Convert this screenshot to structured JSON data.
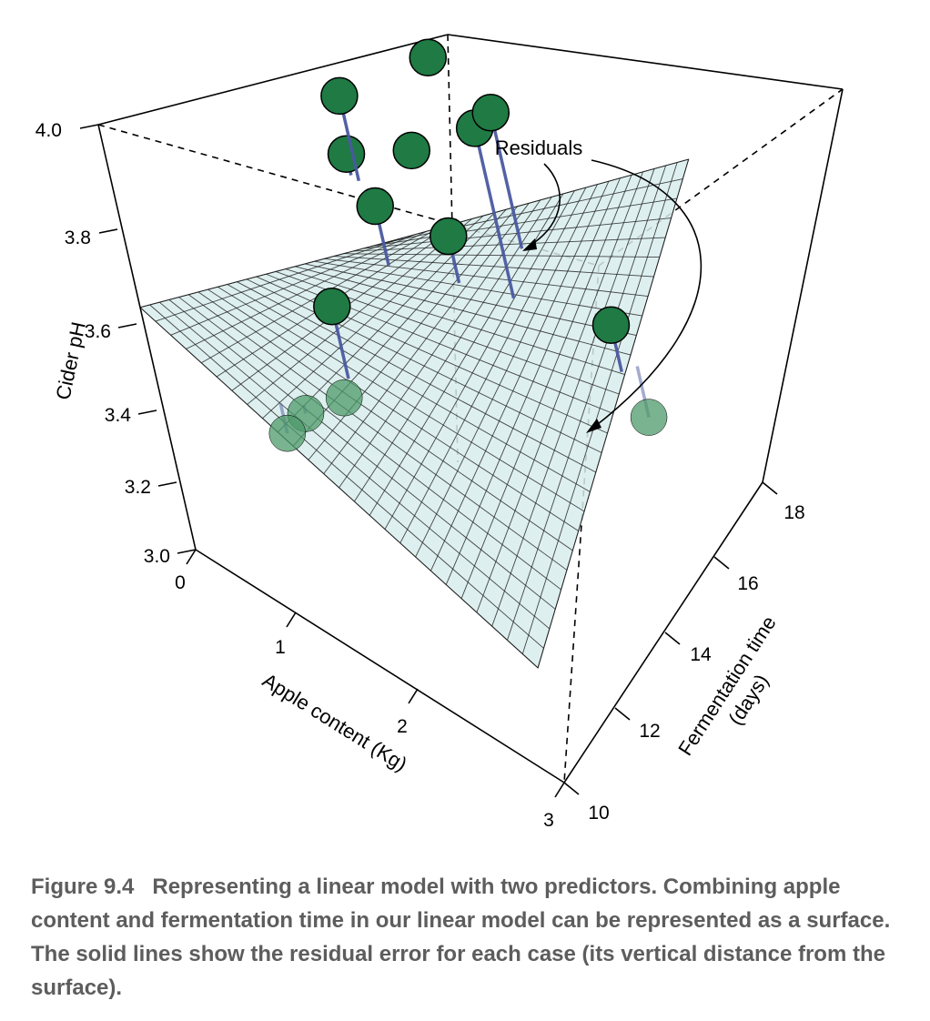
{
  "chart_data": {
    "type": "scatter",
    "subtype": "3d-regression-surface",
    "zlabel": "Cider pH",
    "xlabel": "Apple content (Kg)",
    "ylabel_line1": "Fermentation time",
    "ylabel_line2": "(days)",
    "annotation": "Residuals",
    "x_ticks": [
      "0",
      "1",
      "2",
      "3"
    ],
    "y_ticks": [
      "10",
      "12",
      "14",
      "16",
      "18"
    ],
    "z_ticks": [
      "3.0",
      "3.2",
      "3.4",
      "3.6",
      "3.8",
      "4.0"
    ],
    "xlim": [
      0,
      3
    ],
    "ylim": [
      10,
      18
    ],
    "zlim": [
      3.0,
      4.0
    ],
    "surface": {
      "z_at_x0_y18": 3.02,
      "z_at_x3_y18": 3.76,
      "z_at_x0_y10": 3.57,
      "z_at_x3_y10": 3.27
    },
    "points": [
      {
        "apple": 0.55,
        "time": 12.5,
        "ph": 3.2,
        "fit": 3.22,
        "above": false
      },
      {
        "apple": 0.62,
        "time": 13.8,
        "ph": 3.35,
        "fit": 3.18,
        "above": true
      },
      {
        "apple": 0.9,
        "time": 14.9,
        "ph": 3.54,
        "fit": 3.4,
        "above": true
      },
      {
        "apple": 0.95,
        "time": 12.5,
        "ph": 3.31,
        "fit": 3.31,
        "above": false
      },
      {
        "apple": 0.65,
        "time": 11.5,
        "ph": 3.26,
        "fit": 3.33,
        "above": false
      },
      {
        "apple": 1.35,
        "time": 17.0,
        "ph": 3.62,
        "fit": 3.22,
        "above": true
      },
      {
        "apple": 1.05,
        "time": 15.9,
        "ph": 3.61,
        "fit": 3.58,
        "above": true
      },
      {
        "apple": 1.5,
        "time": 15.0,
        "ph": 3.57,
        "fit": 3.46,
        "above": true
      },
      {
        "apple": 0.58,
        "time": 15.4,
        "ph": 3.56,
        "fit": 3.51,
        "above": true
      },
      {
        "apple": 0.45,
        "time": 16.0,
        "ph": 3.62,
        "fit": 3.42,
        "above": true
      },
      {
        "apple": 0.9,
        "time": 17.5,
        "ph": 3.66,
        "fit": 3.63,
        "above": true
      },
      {
        "apple": 1.6,
        "time": 16.8,
        "ph": 3.72,
        "fit": 3.4,
        "above": true
      },
      {
        "apple": 2.25,
        "time": 16.9,
        "ph": 3.33,
        "fit": 3.22,
        "above": true
      },
      {
        "apple": 2.6,
        "time": 16.3,
        "ph": 3.23,
        "fit": 3.35,
        "above": false
      }
    ]
  },
  "caption": {
    "label": "Figure 9.4",
    "text": "Representing a linear model with two predictors. Combining apple content and fermentation time in our linear model can be represented as a surface. The solid lines show the residual error for each case (its vertical distance from the surface)."
  },
  "colors": {
    "surface_fill": "#d8ecec",
    "surface_grid": "#1a1a1a",
    "point": "#1f7a44",
    "point_behind": "#4e9a6a",
    "residual": "#4a58a0"
  }
}
